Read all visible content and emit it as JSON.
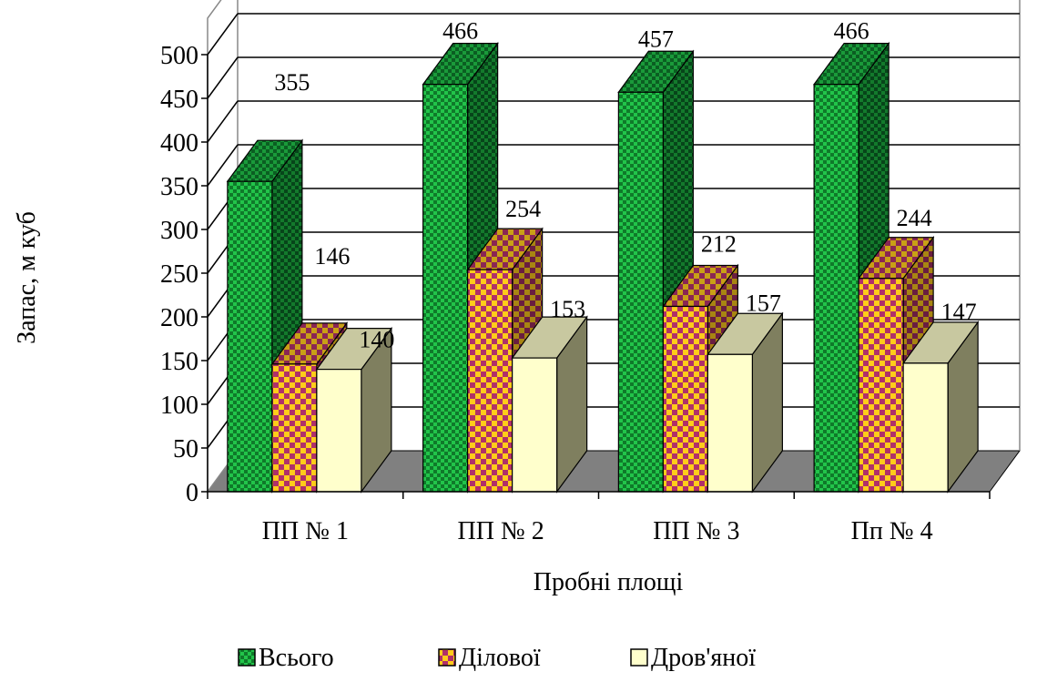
{
  "chart_data": {
    "type": "bar",
    "subtype": "3d-clustered-column",
    "title": "",
    "xlabel": "Пробні площі",
    "ylabel": "Запас, м куб",
    "categories": [
      "ПП № 1",
      "ПП № 2",
      "ПП № 3",
      "Пп № 4"
    ],
    "ylim": [
      0,
      500
    ],
    "yticks": [
      0,
      50,
      100,
      150,
      200,
      250,
      300,
      350,
      400,
      450,
      500
    ],
    "grid": true,
    "legend_position": "bottom",
    "series": [
      {
        "name": "Всього",
        "values": [
          355,
          466,
          457,
          466
        ],
        "color": "#1fae3c",
        "pattern": "green-checker"
      },
      {
        "name": "Ділової",
        "values": [
          146,
          254,
          212,
          244
        ],
        "color": "#f5c518",
        "pattern": "yellow-purple-checker"
      },
      {
        "name": "Дров'яної",
        "values": [
          140,
          153,
          157,
          147
        ],
        "color": "#ffffcc",
        "pattern": "solid"
      }
    ]
  }
}
